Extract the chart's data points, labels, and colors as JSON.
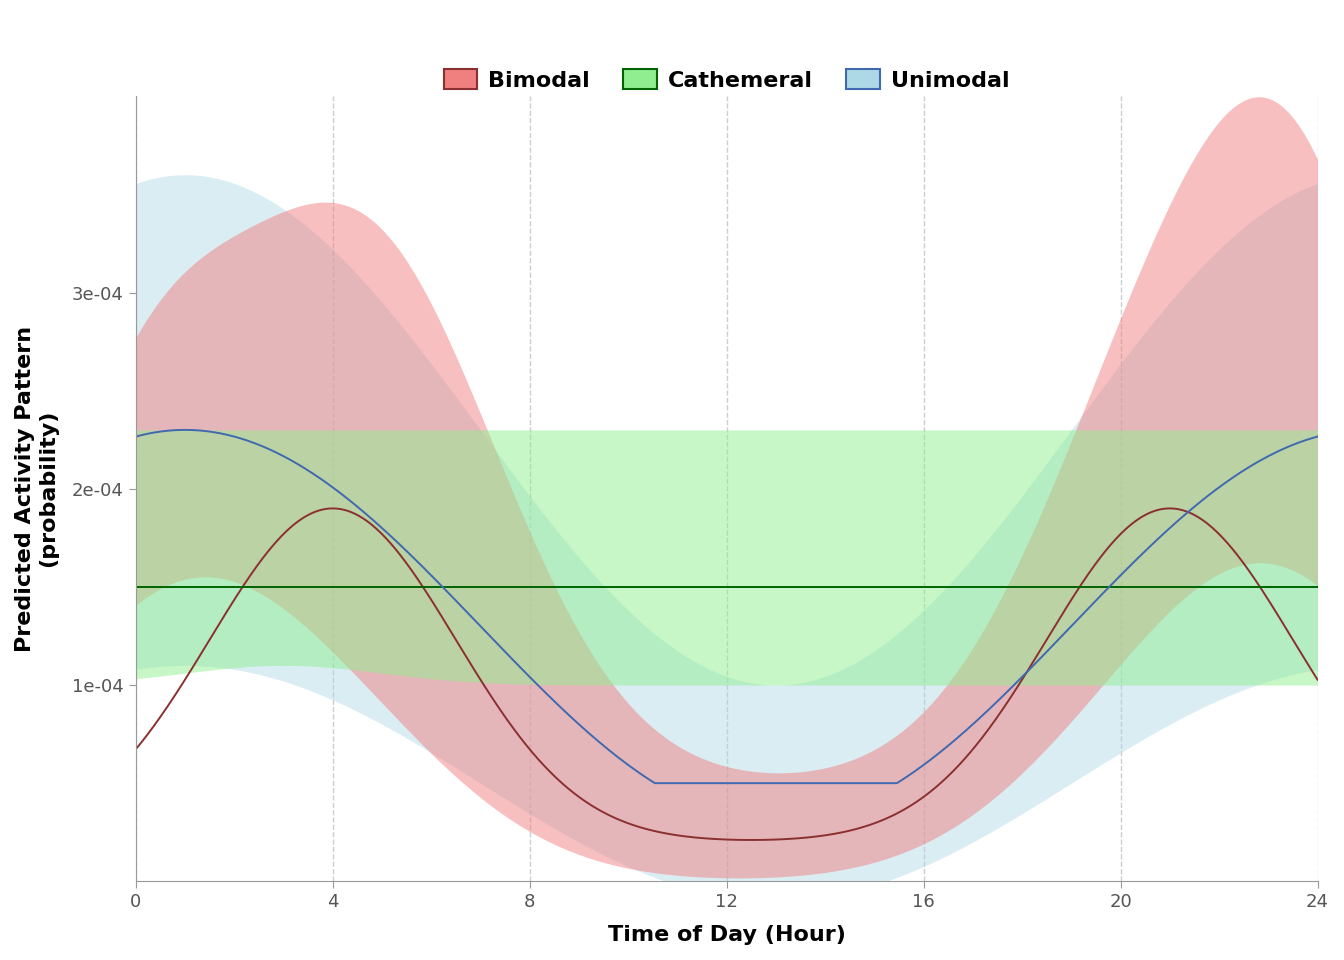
{
  "xlabel": "Time of Day (Hour)",
  "ylabel": "Predicted Activity Pattern\n(probability)",
  "xlim": [
    0,
    24
  ],
  "ylim": [
    0,
    0.0004
  ],
  "yticks": [
    0.0001,
    0.0002,
    0.0003
  ],
  "ytick_labels": [
    "1e-04",
    "2e-04",
    "3e-04"
  ],
  "xticks": [
    0,
    4,
    8,
    12,
    16,
    20,
    24
  ],
  "bimodal_fill": "#f08080",
  "bimodal_line": "#8b3030",
  "cathemeral_fill": "#90ee90",
  "cathemeral_line": "#006400",
  "unimodal_fill": "#add8e6",
  "unimodal_line": "#4169b0",
  "background_color": "#ffffff",
  "grid_color": "#cccccc"
}
